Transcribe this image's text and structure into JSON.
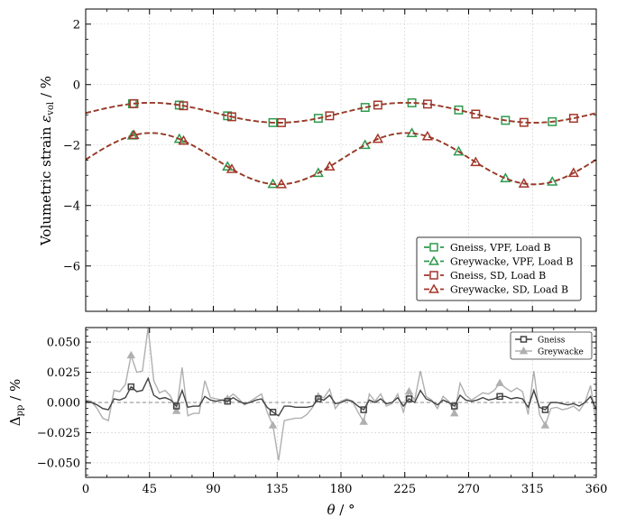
{
  "colors": {
    "vpf": "#2e9a4d",
    "sd": "#a3362a",
    "gneiss_diff": "#444444",
    "greywacke_diff": "#b0b0b0",
    "zero_line": "#888888",
    "grid": "#cccccc"
  },
  "chart_data": [
    {
      "type": "line",
      "title": "",
      "xlabel": "",
      "ylabel": "Volumetric strain εvol / %",
      "ylabel_main": "Volumetric strain ",
      "ylabel_symbol": "ε",
      "ylabel_sub": "vol",
      "ylabel_unit": " / %",
      "xlim": [
        0,
        360
      ],
      "ylim": [
        -7.5,
        2.5
      ],
      "yticks": [
        2,
        0,
        -2,
        -4,
        -6
      ],
      "ytick_labels": [
        "2",
        "0",
        "−2",
        "−4",
        "−6"
      ],
      "grid": true,
      "legend_placement": "lower-right",
      "model": {
        "gneiss": {
          "mean": -0.93,
          "amp": 0.33,
          "phase": 46
        },
        "greywacke": {
          "mean": -2.45,
          "amp": 0.85,
          "phase": 46
        }
      },
      "series": [
        {
          "name": "Gneiss, VPF, Load B",
          "color_key": "vpf",
          "marker": "square",
          "style": "dashed",
          "marker_x": [
            33,
            66,
            100,
            132,
            164,
            197,
            230,
            263,
            296,
            329
          ]
        },
        {
          "name": "Greywacke, VPF, Load B",
          "color_key": "vpf",
          "marker": "triangle",
          "style": "dashed",
          "marker_x": [
            33,
            66,
            100,
            132,
            164,
            197,
            230,
            263,
            296,
            329
          ]
        },
        {
          "name": "Gneiss, SD, Load B",
          "color_key": "sd",
          "marker": "square",
          "style": "dashed",
          "marker_x": [
            34,
            69,
            103,
            138,
            172,
            206,
            241,
            275,
            309,
            344
          ]
        },
        {
          "name": "Greywacke, SD, Load B",
          "color_key": "sd",
          "marker": "triangle",
          "style": "dashed",
          "marker_x": [
            34,
            69,
            103,
            138,
            172,
            206,
            241,
            275,
            309,
            344
          ]
        }
      ]
    },
    {
      "type": "line",
      "title": "",
      "xlabel": "θ / °",
      "xlabel_symbol": "θ",
      "xlabel_unit": " / °",
      "ylabel": "Δpp / %",
      "ylabel_symbol": "Δ",
      "ylabel_sub": "pp",
      "ylabel_unit": " / %",
      "xlim": [
        0,
        360
      ],
      "ylim": [
        -0.062,
        0.062
      ],
      "xticks": [
        0,
        45,
        90,
        135,
        180,
        225,
        270,
        315,
        360
      ],
      "xtick_labels": [
        "0",
        "45",
        "90",
        "135",
        "180",
        "225",
        "270",
        "315",
        "360"
      ],
      "yticks": [
        0.05,
        0.025,
        0.0,
        -0.025,
        -0.05
      ],
      "ytick_labels": [
        "0.050",
        "0.025",
        "0.000",
        "−0.025",
        "−0.050"
      ],
      "grid": true,
      "legend_placement": "top-right",
      "series": [
        {
          "name": "Gneiss",
          "color_key": "gneiss_diff",
          "marker": "square",
          "x": [
            0,
            4,
            8,
            12,
            16,
            20,
            24,
            28,
            32,
            36,
            40,
            44,
            48,
            52,
            56,
            60,
            64,
            68,
            72,
            76,
            80,
            84,
            88,
            92,
            96,
            100,
            104,
            108,
            112,
            116,
            120,
            124,
            128,
            132,
            136,
            140,
            144,
            148,
            152,
            156,
            160,
            164,
            168,
            172,
            176,
            180,
            184,
            188,
            192,
            196,
            200,
            204,
            208,
            212,
            216,
            220,
            224,
            228,
            232,
            236,
            240,
            244,
            248,
            252,
            256,
            260,
            264,
            268,
            272,
            276,
            280,
            284,
            288,
            292,
            296,
            300,
            304,
            308,
            312,
            316,
            320,
            324,
            328,
            332,
            336,
            340,
            344,
            348,
            352,
            356,
            360
          ],
          "values": [
            0.001,
            0.0,
            -0.002,
            -0.005,
            -0.006,
            0.003,
            0.002,
            0.004,
            0.013,
            0.009,
            0.01,
            0.02,
            0.006,
            0.003,
            0.004,
            0.002,
            -0.003,
            0.01,
            -0.004,
            -0.003,
            -0.003,
            0.005,
            0.002,
            0.001,
            0.002,
            0.001,
            0.004,
            0.001,
            -0.001,
            0.0,
            0.002,
            0.003,
            -0.004,
            -0.008,
            -0.011,
            -0.003,
            -0.003,
            -0.004,
            -0.004,
            -0.004,
            -0.003,
            0.003,
            0.002,
            0.006,
            -0.001,
            0.0,
            0.002,
            0.001,
            -0.003,
            -0.006,
            0.002,
            0.0,
            0.003,
            -0.001,
            0.0,
            0.004,
            -0.003,
            0.003,
            0.0,
            0.01,
            0.003,
            0.001,
            -0.002,
            0.002,
            0.0,
            -0.003,
            0.006,
            0.002,
            0.001,
            0.002,
            0.004,
            0.002,
            0.003,
            0.005,
            0.005,
            0.003,
            0.004,
            0.003,
            -0.004,
            0.01,
            -0.004,
            -0.006,
            0.0,
            0.0,
            -0.001,
            -0.002,
            -0.001,
            -0.003,
            0.0,
            0.005,
            -0.006
          ],
          "marker_x": [
            32,
            64,
            100,
            132,
            164,
            196,
            228,
            260,
            292,
            324
          ]
        },
        {
          "name": "Greywacke",
          "color_key": "greywacke_diff",
          "marker": "triangle",
          "x": [
            0,
            4,
            8,
            12,
            16,
            20,
            24,
            28,
            32,
            36,
            40,
            44,
            48,
            52,
            56,
            60,
            64,
            68,
            72,
            76,
            80,
            84,
            88,
            92,
            96,
            100,
            104,
            108,
            112,
            116,
            120,
            124,
            128,
            132,
            136,
            140,
            144,
            148,
            152,
            156,
            160,
            164,
            168,
            172,
            176,
            180,
            184,
            188,
            192,
            196,
            200,
            204,
            208,
            212,
            216,
            220,
            224,
            228,
            232,
            236,
            240,
            244,
            248,
            252,
            256,
            260,
            264,
            268,
            272,
            276,
            280,
            284,
            288,
            292,
            296,
            300,
            304,
            308,
            312,
            316,
            320,
            324,
            328,
            332,
            336,
            340,
            344,
            348,
            352,
            356,
            360
          ],
          "values": [
            0.002,
            0.001,
            -0.005,
            -0.013,
            -0.015,
            0.01,
            0.009,
            0.015,
            0.039,
            0.025,
            0.026,
            0.062,
            0.018,
            0.008,
            0.01,
            0.005,
            -0.007,
            0.029,
            -0.011,
            -0.009,
            -0.009,
            0.018,
            0.004,
            0.003,
            0.002,
            0.003,
            0.007,
            0.003,
            -0.002,
            0.001,
            0.004,
            0.007,
            -0.008,
            -0.019,
            -0.048,
            -0.015,
            -0.014,
            -0.013,
            -0.013,
            -0.01,
            -0.004,
            0.005,
            0.004,
            0.011,
            -0.005,
            0.001,
            0.003,
            0.001,
            -0.008,
            -0.016,
            0.007,
            0.001,
            0.007,
            -0.003,
            -0.001,
            0.007,
            -0.008,
            0.009,
            0.002,
            0.026,
            0.005,
            0.002,
            -0.005,
            0.005,
            0.001,
            -0.009,
            0.016,
            0.006,
            0.002,
            0.005,
            0.008,
            0.007,
            0.01,
            0.016,
            0.012,
            0.009,
            0.012,
            0.009,
            -0.01,
            0.026,
            -0.01,
            -0.019,
            -0.005,
            -0.004,
            -0.006,
            -0.005,
            -0.003,
            -0.007,
            0.0,
            0.014,
            -0.018
          ],
          "marker_x": [
            32,
            64,
            100,
            132,
            164,
            196,
            228,
            260,
            292,
            324
          ]
        }
      ]
    }
  ]
}
